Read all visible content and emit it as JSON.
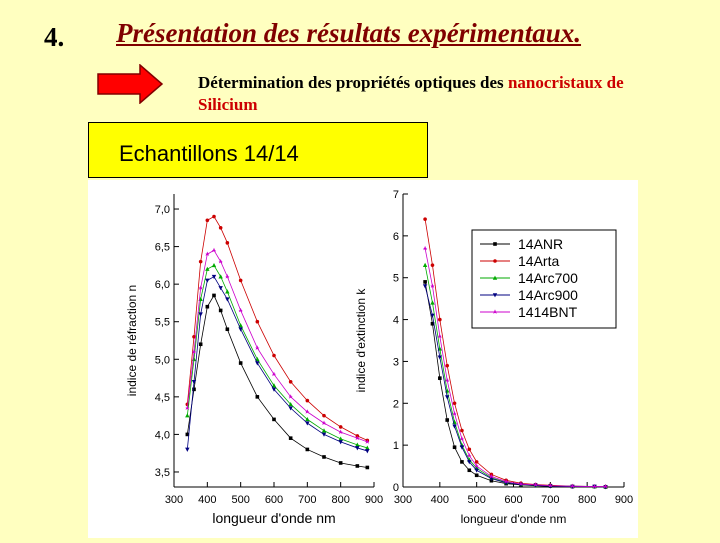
{
  "slide": {
    "number": "4.",
    "title": "Présentation des résultats expérimentaux.",
    "subtitle_prefix": "Détermination des propriétés optiques des ",
    "subtitle_highlight": "nanocristaux de",
    "subtitle_line2": "Silicium",
    "sample_label": "Echantillons 14/14"
  },
  "colors": {
    "background": "#ffffc0",
    "title": "#800000",
    "highlight": "#cc0000",
    "arrow": "#ff0000",
    "box": "#ffff00"
  },
  "chart_data": [
    {
      "type": "scatter",
      "ylabel": "indice de réfraction n",
      "xlabel": "longueur d'onde nm",
      "xlim": [
        300,
        900
      ],
      "ylim": [
        3.3,
        7.2
      ],
      "xticks": [
        300,
        400,
        500,
        600,
        700,
        800,
        900
      ],
      "yticks": [
        3.5,
        4.0,
        4.5,
        5.0,
        5.5,
        6.0,
        6.5,
        7.0
      ],
      "ytick_labels": [
        "3,5",
        "4,0",
        "4,5",
        "5,0",
        "5,5",
        "6,0",
        "6,5",
        "7,0"
      ],
      "x": [
        340,
        360,
        380,
        400,
        420,
        440,
        460,
        500,
        550,
        600,
        650,
        700,
        750,
        800,
        850,
        880
      ],
      "series": [
        {
          "name": "14ANR",
          "color": "#000000",
          "values": [
            4.0,
            4.6,
            5.2,
            5.7,
            5.85,
            5.65,
            5.4,
            4.95,
            4.5,
            4.2,
            3.95,
            3.8,
            3.7,
            3.62,
            3.58,
            3.56
          ]
        },
        {
          "name": "14Arta",
          "color": "#cc0000",
          "values": [
            4.4,
            5.3,
            6.3,
            6.85,
            6.9,
            6.75,
            6.55,
            6.05,
            5.5,
            5.05,
            4.7,
            4.45,
            4.25,
            4.1,
            3.98,
            3.92
          ]
        },
        {
          "name": "14Arc700",
          "color": "#00aa00",
          "values": [
            4.25,
            5.0,
            5.8,
            6.2,
            6.25,
            6.1,
            5.9,
            5.45,
            5.0,
            4.65,
            4.4,
            4.2,
            4.05,
            3.94,
            3.86,
            3.82
          ]
        },
        {
          "name": "14Arc900",
          "color": "#000080",
          "values": [
            3.8,
            4.7,
            5.6,
            6.05,
            6.1,
            5.95,
            5.8,
            5.4,
            4.95,
            4.6,
            4.35,
            4.15,
            4.0,
            3.9,
            3.82,
            3.78
          ]
        },
        {
          "name": "1414BNT",
          "color": "#cc00cc",
          "values": [
            4.35,
            5.1,
            5.95,
            6.4,
            6.45,
            6.3,
            6.1,
            5.65,
            5.15,
            4.8,
            4.5,
            4.3,
            4.15,
            4.03,
            3.95,
            3.9
          ]
        }
      ]
    },
    {
      "type": "scatter",
      "ylabel": "indice d'extinction k",
      "xlabel": "longueur d'onde nm",
      "xlim": [
        300,
        900
      ],
      "ylim": [
        0,
        7
      ],
      "xticks": [
        300,
        400,
        500,
        600,
        700,
        800,
        900
      ],
      "yticks": [
        0,
        1,
        2,
        3,
        4,
        5,
        6,
        7
      ],
      "ytick_labels": [
        "0",
        "1",
        "2",
        "3",
        "4",
        "5",
        "6",
        "7"
      ],
      "legend_position": "top-right",
      "x": [
        360,
        380,
        400,
        420,
        440,
        460,
        480,
        500,
        540,
        580,
        620,
        660,
        700,
        760,
        820,
        850
      ],
      "series": [
        {
          "name": "14ANR",
          "color": "#000000",
          "values": [
            4.9,
            3.9,
            2.6,
            1.6,
            0.95,
            0.6,
            0.4,
            0.28,
            0.15,
            0.08,
            0.05,
            0.03,
            0.02,
            0.01,
            0.01,
            0.0
          ]
        },
        {
          "name": "14Arta",
          "color": "#cc0000",
          "values": [
            6.4,
            5.3,
            4.0,
            2.9,
            2.0,
            1.35,
            0.9,
            0.6,
            0.3,
            0.16,
            0.09,
            0.06,
            0.04,
            0.02,
            0.01,
            0.01
          ]
        },
        {
          "name": "14Arc700",
          "color": "#00aa00",
          "values": [
            5.3,
            4.4,
            3.3,
            2.3,
            1.55,
            1.0,
            0.65,
            0.45,
            0.22,
            0.11,
            0.06,
            0.04,
            0.03,
            0.02,
            0.01,
            0.01
          ]
        },
        {
          "name": "14Arc900",
          "color": "#000080",
          "values": [
            4.8,
            4.1,
            3.1,
            2.15,
            1.45,
            0.95,
            0.6,
            0.4,
            0.2,
            0.1,
            0.06,
            0.04,
            0.02,
            0.01,
            0.01,
            0.0
          ]
        },
        {
          "name": "1414BNT",
          "color": "#cc00cc",
          "values": [
            5.7,
            4.8,
            3.6,
            2.55,
            1.75,
            1.15,
            0.75,
            0.5,
            0.25,
            0.13,
            0.07,
            0.05,
            0.03,
            0.02,
            0.01,
            0.01
          ]
        }
      ]
    }
  ]
}
